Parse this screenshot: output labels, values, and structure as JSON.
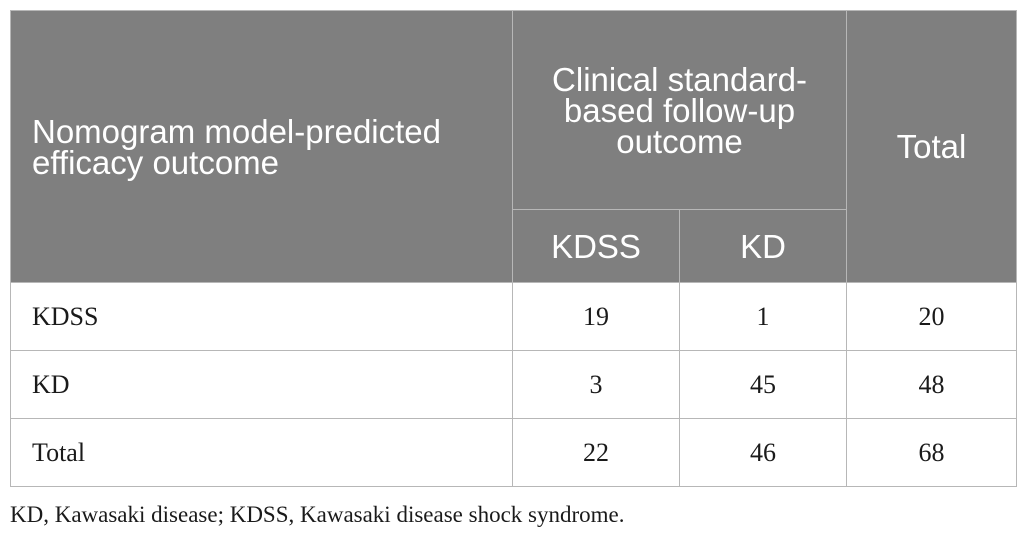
{
  "table": {
    "header": {
      "row_label": "Nomogram model-predicted efficacy outcome",
      "group_label": "Clinical standard-based follow-up outcome",
      "sub_columns": [
        "KDSS",
        "KD"
      ],
      "total_label": "Total"
    },
    "rows": [
      {
        "label": "KDSS",
        "values": [
          "19",
          "1",
          "20"
        ]
      },
      {
        "label": "KD",
        "values": [
          "3",
          "45",
          "48"
        ]
      },
      {
        "label": "Total",
        "values": [
          "22",
          "46",
          "68"
        ]
      }
    ]
  },
  "footnote": "KD, Kawasaki disease; KDSS, Kawasaki disease shock syndrome.",
  "colors": {
    "header_bg": "#7f7f7f",
    "header_text": "#ffffff",
    "border": "#b7b7b7"
  }
}
